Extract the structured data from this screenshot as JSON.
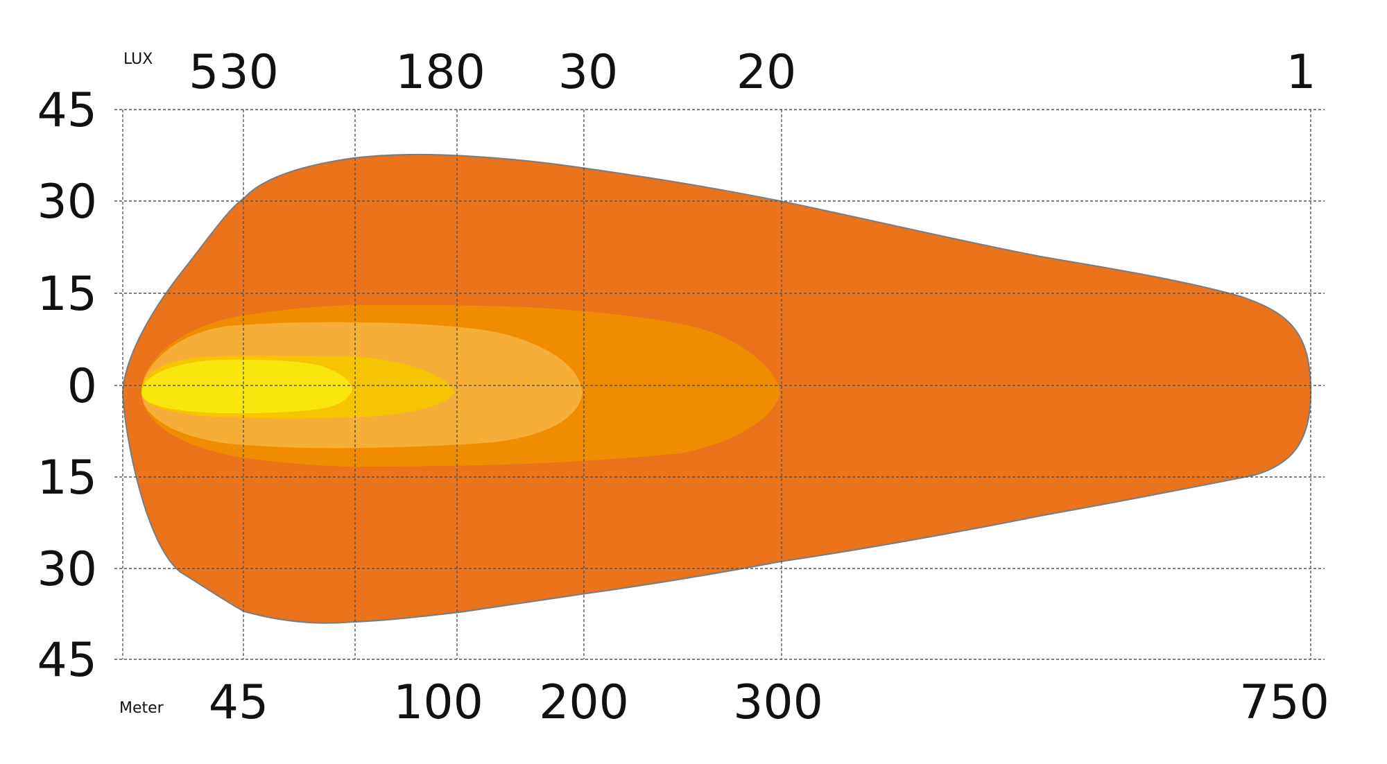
{
  "chart_data": {
    "type": "area",
    "title": "",
    "lux_label": "LUX",
    "meter_label": "Meter",
    "lux_ticks": [
      "530",
      "180",
      "30",
      "20",
      "1"
    ],
    "distance_ticks": [
      "45",
      "100",
      "200",
      "300",
      "750"
    ],
    "y_ticks": [
      "45",
      "30",
      "15",
      "0",
      "15",
      "30",
      "45"
    ],
    "grid": true,
    "colors": {
      "outer": "#EA731B",
      "band2": "#F08C00",
      "band3": "#F6AE38",
      "band4": "#F6C400",
      "core": "#FAE60C",
      "outline": "#7E7E7E",
      "grid": "#555555"
    },
    "series": [
      {
        "lux": "1",
        "reach_m": 750
      },
      {
        "lux": "20",
        "reach_m": 300
      },
      {
        "lux": "30",
        "reach_m": 200
      },
      {
        "lux": "180",
        "reach_m": 100
      },
      {
        "lux": "530",
        "reach_m": 45
      }
    ]
  }
}
